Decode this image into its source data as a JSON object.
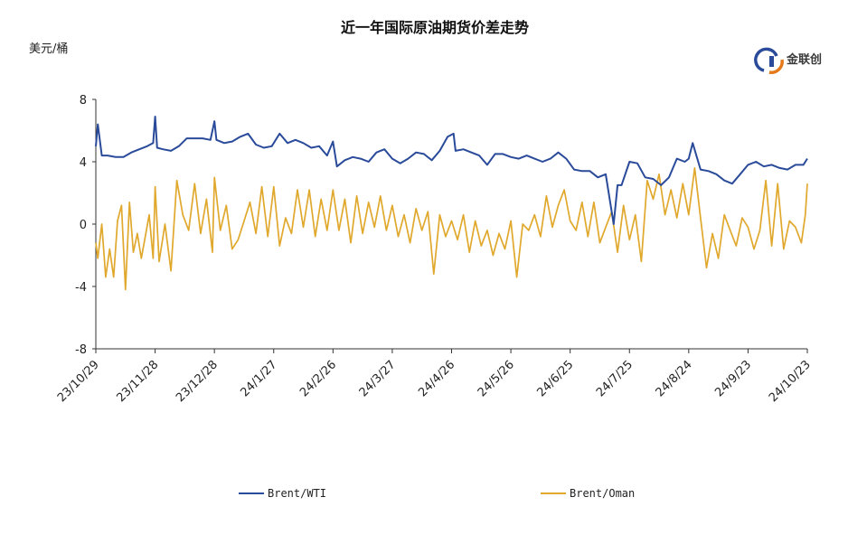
{
  "chart_data": {
    "type": "line",
    "title": "近一年国际原油期货价差走势",
    "ylabel": "美元/桶",
    "xlabel": "",
    "ylim": [
      -8,
      8
    ],
    "yticks": [
      8,
      4,
      0,
      -4,
      -8
    ],
    "xlim": [
      "2023-10-29",
      "2024-10-23"
    ],
    "xticks": [
      "23/10/29",
      "23/11/28",
      "23/12/28",
      "24/1/27",
      "24/2/26",
      "24/3/27",
      "24/4/26",
      "24/5/26",
      "24/6/25",
      "24/7/25",
      "24/8/24",
      "24/9/23",
      "24/10/23"
    ],
    "grid": false,
    "legend": "bottom",
    "series": [
      {
        "name": "Brent/WTI",
        "color": "#2a4a9a",
        "x": [
          "2023-10-29",
          "2023-10-30",
          "2023-11-01",
          "2023-11-04",
          "2023-11-08",
          "2023-11-12",
          "2023-11-16",
          "2023-11-20",
          "2023-11-24",
          "2023-11-27",
          "2023-11-28",
          "2023-11-29",
          "2023-12-02",
          "2023-12-06",
          "2023-12-10",
          "2023-12-14",
          "2023-12-18",
          "2023-12-22",
          "2023-12-26",
          "2023-12-28",
          "2023-12-29",
          "2024-01-02",
          "2024-01-06",
          "2024-01-10",
          "2024-01-14",
          "2024-01-18",
          "2024-01-22",
          "2024-01-26",
          "2024-01-30",
          "2024-02-03",
          "2024-02-07",
          "2024-02-11",
          "2024-02-15",
          "2024-02-19",
          "2024-02-23",
          "2024-02-26",
          "2024-02-28",
          "2024-03-03",
          "2024-03-07",
          "2024-03-11",
          "2024-03-15",
          "2024-03-19",
          "2024-03-23",
          "2024-03-27",
          "2024-03-31",
          "2024-04-04",
          "2024-04-08",
          "2024-04-12",
          "2024-04-16",
          "2024-04-20",
          "2024-04-24",
          "2024-04-27",
          "2024-04-28",
          "2024-05-02",
          "2024-05-06",
          "2024-05-10",
          "2024-05-14",
          "2024-05-18",
          "2024-05-22",
          "2024-05-26",
          "2024-05-30",
          "2024-06-03",
          "2024-06-07",
          "2024-06-11",
          "2024-06-15",
          "2024-06-19",
          "2024-06-23",
          "2024-06-27",
          "2024-07-01",
          "2024-07-05",
          "2024-07-09",
          "2024-07-13",
          "2024-07-17",
          "2024-07-19",
          "2024-07-21",
          "2024-07-25",
          "2024-07-29",
          "2024-08-02",
          "2024-08-06",
          "2024-08-10",
          "2024-08-14",
          "2024-08-18",
          "2024-08-22",
          "2024-08-24",
          "2024-08-26",
          "2024-08-30",
          "2024-09-03",
          "2024-09-07",
          "2024-09-11",
          "2024-09-15",
          "2024-09-19",
          "2024-09-23",
          "2024-09-27",
          "2024-10-01",
          "2024-10-05",
          "2024-10-09",
          "2024-10-13",
          "2024-10-17",
          "2024-10-21",
          "2024-10-23"
        ],
        "values": [
          5.0,
          6.4,
          4.4,
          4.4,
          4.3,
          4.3,
          4.6,
          4.8,
          5.0,
          5.2,
          6.9,
          4.9,
          4.8,
          4.7,
          5.0,
          5.5,
          5.5,
          5.5,
          5.4,
          6.6,
          5.4,
          5.2,
          5.3,
          5.6,
          5.8,
          5.1,
          4.9,
          5.0,
          5.8,
          5.2,
          5.4,
          5.2,
          4.9,
          5.0,
          4.4,
          5.3,
          3.7,
          4.1,
          4.3,
          4.2,
          4.0,
          4.6,
          4.8,
          4.2,
          3.9,
          4.2,
          4.6,
          4.5,
          4.1,
          4.7,
          5.6,
          5.8,
          4.7,
          4.8,
          4.6,
          4.4,
          3.8,
          4.5,
          4.5,
          4.3,
          4.2,
          4.4,
          4.2,
          4.0,
          4.2,
          4.6,
          4.2,
          3.5,
          3.4,
          3.4,
          3.0,
          3.2,
          0.0,
          2.5,
          2.5,
          4.0,
          3.9,
          3.0,
          2.9,
          2.5,
          3.0,
          4.2,
          4.0,
          4.2,
          5.2,
          3.5,
          3.4,
          3.2,
          2.8,
          2.6,
          3.2,
          3.8,
          4.0,
          3.7,
          3.8,
          3.6,
          3.5,
          3.8,
          3.8,
          4.2
        ]
      },
      {
        "name": "Brent/Oman",
        "color": "#e0a82c",
        "x": [
          "2023-10-29",
          "2023-10-30",
          "2023-11-01",
          "2023-11-03",
          "2023-11-05",
          "2023-11-07",
          "2023-11-09",
          "2023-11-11",
          "2023-11-13",
          "2023-11-15",
          "2023-11-17",
          "2023-11-19",
          "2023-11-21",
          "2023-11-23",
          "2023-11-25",
          "2023-11-27",
          "2023-11-28",
          "2023-11-30",
          "2023-12-03",
          "2023-12-06",
          "2023-12-09",
          "2023-12-12",
          "2023-12-15",
          "2023-12-18",
          "2023-12-21",
          "2023-12-24",
          "2023-12-27",
          "2023-12-28",
          "2023-12-31",
          "2024-01-03",
          "2024-01-06",
          "2024-01-09",
          "2024-01-12",
          "2024-01-15",
          "2024-01-18",
          "2024-01-21",
          "2024-01-24",
          "2024-01-27",
          "2024-01-30",
          "2024-02-02",
          "2024-02-05",
          "2024-02-08",
          "2024-02-11",
          "2024-02-14",
          "2024-02-17",
          "2024-02-20",
          "2024-02-23",
          "2024-02-26",
          "2024-02-29",
          "2024-03-03",
          "2024-03-06",
          "2024-03-09",
          "2024-03-12",
          "2024-03-15",
          "2024-03-18",
          "2024-03-21",
          "2024-03-24",
          "2024-03-27",
          "2024-03-30",
          "2024-04-02",
          "2024-04-05",
          "2024-04-08",
          "2024-04-11",
          "2024-04-14",
          "2024-04-17",
          "2024-04-20",
          "2024-04-23",
          "2024-04-26",
          "2024-04-29",
          "2024-05-02",
          "2024-05-05",
          "2024-05-08",
          "2024-05-11",
          "2024-05-14",
          "2024-05-17",
          "2024-05-20",
          "2024-05-23",
          "2024-05-26",
          "2024-05-29",
          "2024-06-01",
          "2024-06-04",
          "2024-06-07",
          "2024-06-10",
          "2024-06-13",
          "2024-06-16",
          "2024-06-19",
          "2024-06-22",
          "2024-06-25",
          "2024-06-28",
          "2024-07-01",
          "2024-07-04",
          "2024-07-07",
          "2024-07-10",
          "2024-07-13",
          "2024-07-16",
          "2024-07-19",
          "2024-07-22",
          "2024-07-25",
          "2024-07-28",
          "2024-07-31",
          "2024-08-03",
          "2024-08-06",
          "2024-08-09",
          "2024-08-12",
          "2024-08-15",
          "2024-08-18",
          "2024-08-21",
          "2024-08-24",
          "2024-08-27",
          "2024-08-30",
          "2024-09-02",
          "2024-09-05",
          "2024-09-08",
          "2024-09-11",
          "2024-09-14",
          "2024-09-17",
          "2024-09-20",
          "2024-09-23",
          "2024-09-26",
          "2024-09-29",
          "2024-10-02",
          "2024-10-05",
          "2024-10-08",
          "2024-10-11",
          "2024-10-14",
          "2024-10-17",
          "2024-10-20",
          "2024-10-22",
          "2024-10-23"
        ],
        "values": [
          -1.2,
          -2.2,
          0.0,
          -3.4,
          -1.6,
          -3.4,
          0.2,
          1.2,
          -4.2,
          1.4,
          -1.8,
          -0.6,
          -2.2,
          -0.8,
          0.6,
          -2.2,
          2.4,
          -2.4,
          0.0,
          -3.0,
          2.8,
          0.6,
          -0.4,
          2.6,
          -0.6,
          1.6,
          -1.8,
          3.0,
          -0.4,
          1.2,
          -1.6,
          -1.0,
          0.2,
          1.4,
          -0.6,
          2.4,
          -0.8,
          2.4,
          -1.4,
          0.4,
          -0.6,
          2.2,
          -0.2,
          2.2,
          -0.8,
          1.6,
          -0.4,
          2.2,
          -0.4,
          1.6,
          -1.2,
          1.8,
          -0.6,
          1.4,
          -0.2,
          1.8,
          -0.4,
          1.2,
          -0.8,
          0.6,
          -1.2,
          1.0,
          -0.4,
          0.8,
          -3.2,
          0.6,
          -0.8,
          0.2,
          -1.0,
          0.6,
          -1.8,
          0.2,
          -1.4,
          -0.4,
          -2.0,
          -0.6,
          -1.6,
          0.2,
          -3.4,
          0.0,
          -0.4,
          0.6,
          -0.8,
          1.8,
          -0.2,
          1.2,
          2.2,
          0.2,
          -0.4,
          1.4,
          -0.8,
          1.4,
          -1.2,
          -0.2,
          0.8,
          -1.8,
          1.2,
          -1.0,
          0.6,
          -2.4,
          2.8,
          1.6,
          3.2,
          0.6,
          2.2,
          0.4,
          2.6,
          0.6,
          3.6,
          0.4,
          -2.8,
          -0.6,
          -2.2,
          0.6,
          -0.4,
          -1.4,
          0.4,
          -0.2,
          -1.6,
          -0.4,
          2.8,
          -1.4,
          2.6,
          -1.6,
          0.2,
          -0.2,
          -1.2,
          0.6,
          2.6
        ]
      }
    ]
  },
  "logo": {
    "text": "金联创"
  }
}
